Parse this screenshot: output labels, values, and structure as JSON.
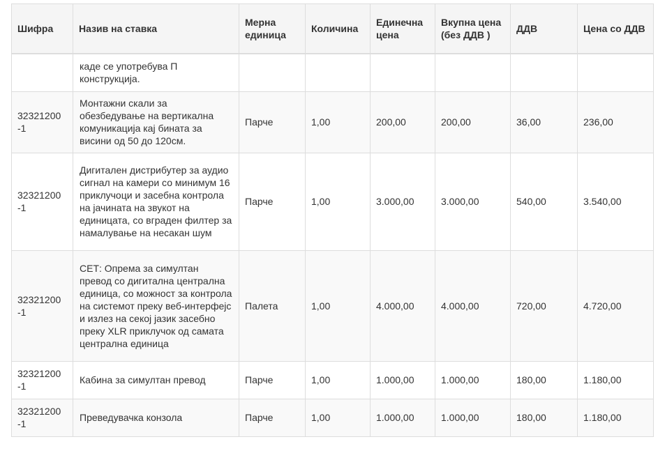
{
  "headers": [
    "Шифра",
    "Назив на ставка",
    "Мерна единица",
    "Количина",
    "Единечна цена",
    "Вкупна цена (без ДДВ )",
    "ДДВ",
    "Цена со ДДВ"
  ],
  "rows": [
    {
      "code": "",
      "name": "каде се употребува П конструкција.",
      "unit": "",
      "qty": "",
      "unit_price": "",
      "total": "",
      "vat": "",
      "total_vat": ""
    },
    {
      "code": "32321200 -1",
      "name": "Монтажни скали за обезбедување на вертикална комуникација кај бината за висини од 50 до 120см.",
      "unit": "Парче",
      "qty": "1,00",
      "unit_price": "200,00",
      "total": "200,00",
      "vat": "36,00",
      "total_vat": "236,00"
    },
    {
      "code": "32321200 -1",
      "name": "Дигитален дистрибутер за аудио сигнал на камери со минимум 16 приклучоци и засебна контрола на јачината на звукот на единицата, со вграден филтер за намалување на несакан шум",
      "unit": "Парче",
      "qty": "1,00",
      "unit_price": "3.000,00",
      "total": "3.000,00",
      "vat": "540,00",
      "total_vat": "3.540,00"
    },
    {
      "code": "32321200 -1",
      "name": "СЕТ: Опрема за симултан превод со дигитална централна единица, со можност за контрола на системот преку веб-интерфејс и излез на секој јазик засебно преку XLR приклучок од самата централна единица",
      "unit": "Палета",
      "qty": "1,00",
      "unit_price": "4.000,00",
      "total": "4.000,00",
      "vat": "720,00",
      "total_vat": "4.720,00"
    },
    {
      "code": "32321200 -1",
      "name": "Кабина за симултан превод",
      "unit": "Парче",
      "qty": "1,00",
      "unit_price": "1.000,00",
      "total": "1.000,00",
      "vat": "180,00",
      "total_vat": "1.180,00"
    },
    {
      "code": "32321200 -1",
      "name": "Преведувачка конзола",
      "unit": "Парче",
      "qty": "1,00",
      "unit_price": "1.000,00",
      "total": "1.000,00",
      "vat": "180,00",
      "total_vat": "1.180,00"
    }
  ]
}
